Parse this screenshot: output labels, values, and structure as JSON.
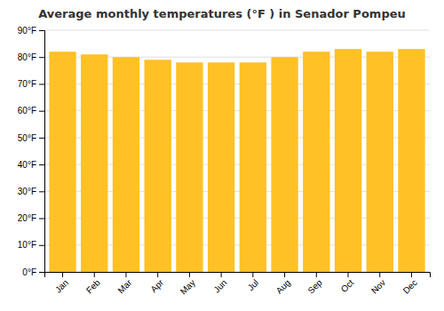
{
  "chart_data": {
    "type": "bar",
    "title": "Average monthly temperatures (°F ) in Senador Pompeu",
    "categories": [
      "Jan",
      "Feb",
      "Mar",
      "Apr",
      "May",
      "Jun",
      "Jul",
      "Aug",
      "Sep",
      "Oct",
      "Nov",
      "Dec"
    ],
    "values": [
      82,
      81,
      80,
      79,
      78,
      78,
      78,
      80,
      82,
      83,
      82,
      83
    ],
    "color": "#FFC125",
    "ylim": [
      0,
      90
    ],
    "yticks": [
      {
        "value": 0,
        "label": "0°F"
      },
      {
        "value": 10,
        "label": "10°F"
      },
      {
        "value": 20,
        "label": "20°F"
      },
      {
        "value": 30,
        "label": "30°F"
      },
      {
        "value": 40,
        "label": "40°F"
      },
      {
        "value": 50,
        "label": "50°F"
      },
      {
        "value": 60,
        "label": "60°F"
      },
      {
        "value": 70,
        "label": "70°F"
      },
      {
        "value": 80,
        "label": "80°F"
      },
      {
        "value": 90,
        "label": "90°F"
      }
    ],
    "grid": true
  }
}
